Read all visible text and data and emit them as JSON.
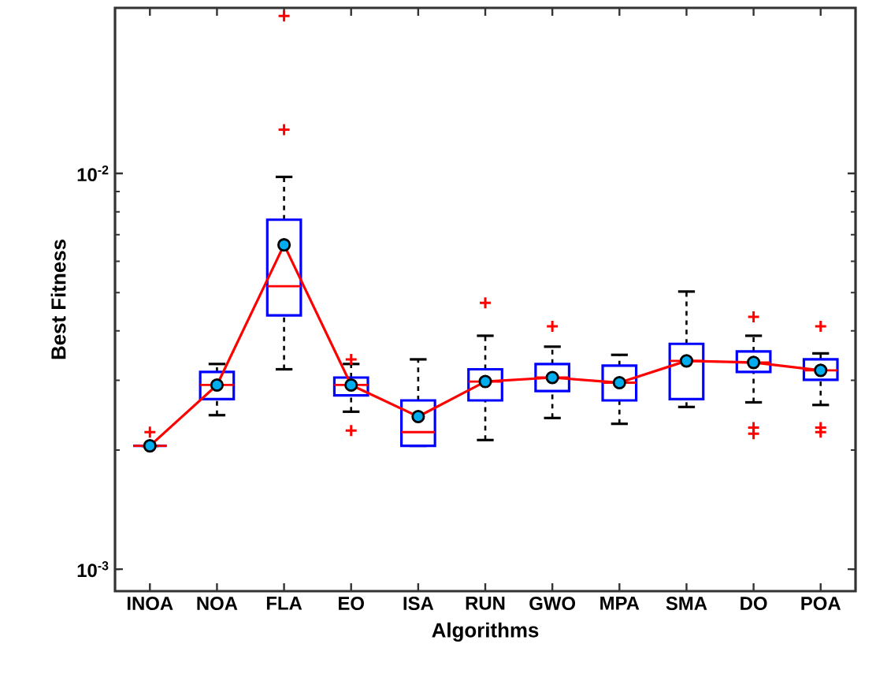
{
  "chart_data": {
    "type": "box",
    "categories": [
      "INOA",
      "NOA",
      "FLA",
      "EO",
      "ISA",
      "RUN",
      "GWO",
      "MPA",
      "SMA",
      "DO",
      "POA"
    ],
    "xlabel": "Algorithms",
    "ylabel": "Best Fitness",
    "log": true,
    "ylim": [
      0.00088,
      0.0262
    ],
    "yticks": [
      {
        "value": 0.001,
        "label": "10$^{-3}$"
      },
      {
        "value": 0.01,
        "label": "10$^{-2}$"
      }
    ],
    "series": [
      {
        "color": "#0000ff",
        "boxes": [
          {
            "low": 0.00205,
            "q1": 0.00205,
            "median": 0.00205,
            "q3": 0.00205,
            "high": 0.00205,
            "outliers": [
              0.00222
            ]
          },
          {
            "low": 0.00245,
            "q1": 0.00269,
            "median": 0.00292,
            "q3": 0.00315,
            "high": 0.0033
          },
          {
            "low": 0.0032,
            "q1": 0.00438,
            "median": 0.00519,
            "q3": 0.00764,
            "high": 0.0098,
            "outliers": [
              0.0129,
              0.025
            ]
          },
          {
            "low": 0.0025,
            "q1": 0.00275,
            "median": 0.00292,
            "q3": 0.00305,
            "high": 0.0033,
            "outliers": [
              0.00339,
              0.00224
            ]
          },
          {
            "low": 0.00205,
            "q1": 0.00205,
            "median": 0.00222,
            "q3": 0.00267,
            "high": 0.00339
          },
          {
            "low": 0.00212,
            "q1": 0.00267,
            "median": 0.00298,
            "q3": 0.0032,
            "high": 0.00389,
            "outliers": [
              0.00471
            ]
          },
          {
            "low": 0.00241,
            "q1": 0.00282,
            "median": 0.00305,
            "q3": 0.0033,
            "high": 0.00365,
            "outliers": [
              0.00411
            ]
          },
          {
            "low": 0.00233,
            "q1": 0.00267,
            "median": 0.00296,
            "q3": 0.00327,
            "high": 0.00348
          },
          {
            "low": 0.00257,
            "q1": 0.00269,
            "median": 0.00336,
            "q3": 0.00371,
            "high": 0.00503
          },
          {
            "low": 0.00264,
            "q1": 0.00315,
            "median": 0.00333,
            "q3": 0.00355,
            "high": 0.00389,
            "outliers": [
              0.00434,
              0.00228,
              0.0022
            ]
          },
          {
            "low": 0.0026,
            "q1": 0.00301,
            "median": 0.00318,
            "q3": 0.00339,
            "high": 0.00351,
            "outliers": [
              0.00411,
              0.00228,
              0.00222
            ]
          }
        ]
      },
      {
        "type": "line",
        "color": "#ff0000",
        "marker": "circle",
        "values": [
          0.00205,
          0.00292,
          0.0066,
          0.00292,
          0.00243,
          0.00298,
          0.00305,
          0.00296,
          0.00336,
          0.00333,
          0.00318
        ]
      }
    ]
  }
}
